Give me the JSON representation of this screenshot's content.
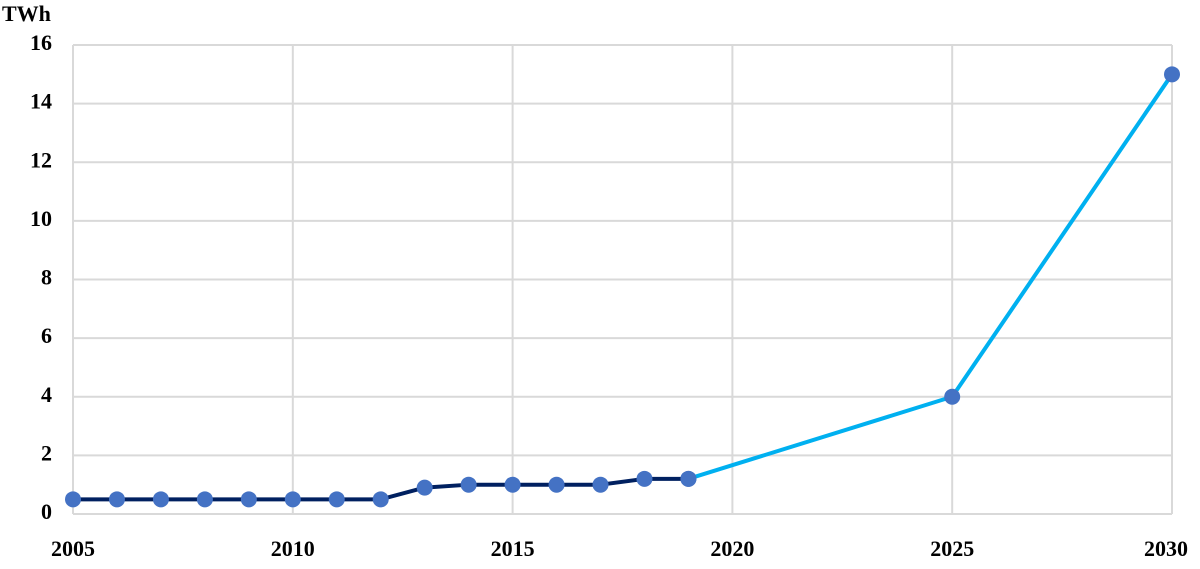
{
  "chart_data": {
    "type": "line",
    "y_label": "TWh",
    "series": [
      {
        "color": "#002060",
        "marker_color": "#4472c4",
        "x": [
          2005,
          2006,
          2007,
          2008,
          2009,
          2010,
          2011,
          2012,
          2013,
          2014,
          2015,
          2016,
          2017,
          2018,
          2019
        ],
        "values": [
          0.5,
          0.5,
          0.5,
          0.5,
          0.5,
          0.5,
          0.5,
          0.5,
          0.9,
          1.0,
          1.0,
          1.0,
          1.0,
          1.2,
          1.2
        ]
      },
      {
        "color": "#00b0f0",
        "marker_color": "#4472c4",
        "x": [
          2019,
          2025,
          2030
        ],
        "values": [
          1.2,
          4,
          15
        ]
      }
    ],
    "xlim": [
      2005,
      2030
    ],
    "xticks": [
      2005,
      2010,
      2015,
      2020,
      2025,
      2030
    ],
    "ylim": [
      0,
      16
    ],
    "yticks": [
      0,
      2,
      4,
      6,
      8,
      10,
      12,
      14,
      16
    ],
    "grid": true
  }
}
